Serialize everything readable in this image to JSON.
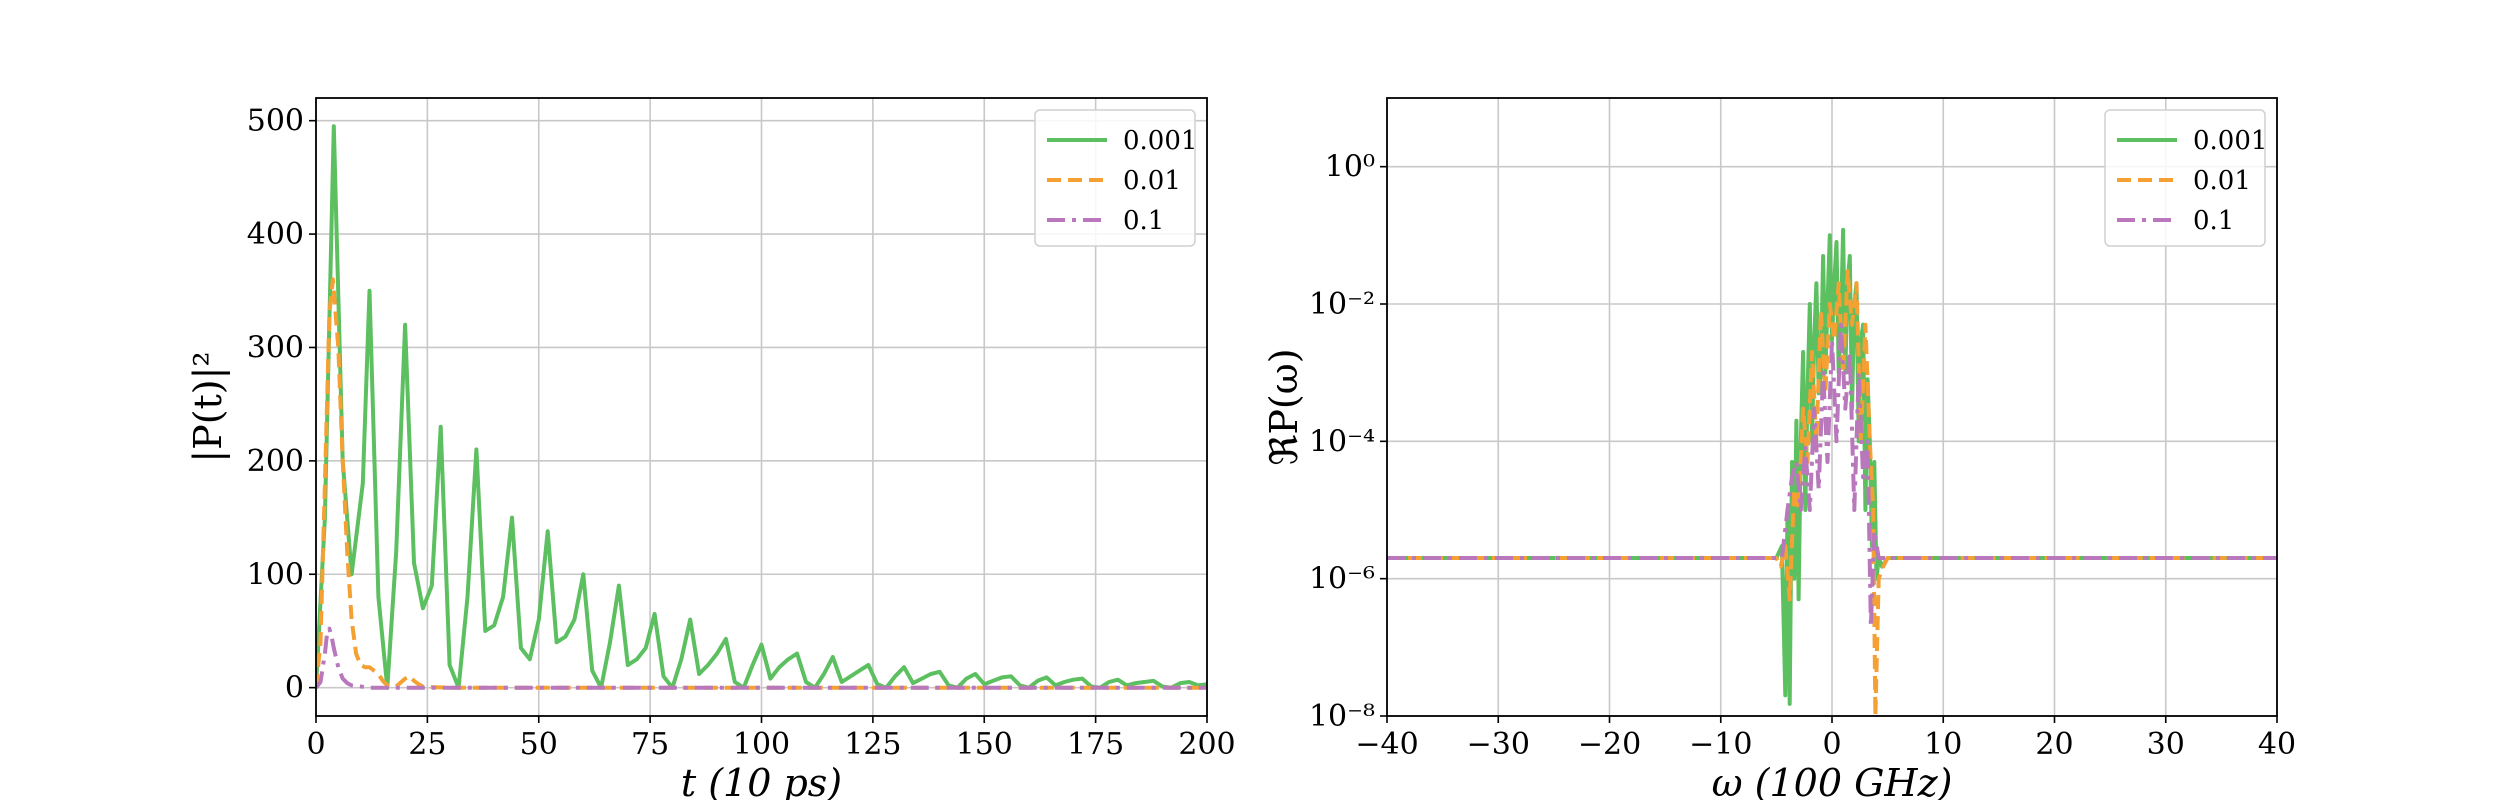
{
  "chart_data": [
    {
      "type": "line",
      "xlabel": "t (10 ps)",
      "ylabel": "|P(t)|²",
      "xlim": [
        0,
        200
      ],
      "ylim": [
        -25,
        520
      ],
      "xticks": [
        "0",
        "25",
        "50",
        "75",
        "100",
        "125",
        "150",
        "175",
        "200"
      ],
      "yticks": [
        "0",
        "100",
        "200",
        "300",
        "400",
        "500"
      ],
      "grid": true,
      "legend_position": "top-right",
      "series": [
        {
          "name": "0.001",
          "color": "#5cbf60",
          "style": "solid",
          "x": [
            0,
            2,
            4,
            6,
            8,
            10.5,
            12,
            14,
            16,
            18,
            20,
            22,
            24,
            26,
            28,
            30,
            32,
            34,
            36,
            38,
            40,
            42,
            44,
            46,
            48,
            50,
            52,
            54,
            56,
            58,
            60,
            62,
            64,
            66,
            68,
            70,
            72,
            74,
            76,
            78,
            80,
            82,
            84,
            86,
            88,
            90,
            92,
            94,
            96,
            98,
            100,
            102,
            104,
            106,
            108,
            110,
            112,
            114,
            116,
            118,
            120,
            122,
            124,
            126,
            128,
            130,
            132,
            134,
            136,
            138,
            140,
            142,
            144,
            146,
            148,
            150,
            152,
            154,
            156,
            158,
            160,
            162,
            164,
            166,
            168,
            170,
            172,
            174,
            176,
            178,
            180,
            182,
            184,
            186,
            188,
            190,
            192,
            194,
            196,
            198,
            200
          ],
          "y": [
            0,
            150,
            495,
            200,
            100,
            180,
            350,
            80,
            0,
            120,
            320,
            110,
            70,
            90,
            230,
            20,
            0,
            80,
            210,
            50,
            55,
            80,
            150,
            35,
            25,
            60,
            138,
            40,
            45,
            60,
            100,
            15,
            0,
            40,
            90,
            20,
            25,
            35,
            65,
            10,
            0,
            25,
            60,
            12,
            20,
            30,
            43,
            5,
            0,
            20,
            38,
            8,
            18,
            25,
            30,
            5,
            0,
            12,
            27,
            5,
            10,
            15,
            20,
            3,
            0,
            10,
            18,
            4,
            8,
            12,
            14,
            2,
            0,
            8,
            12,
            3,
            6,
            9,
            10,
            2,
            0,
            6,
            9,
            2,
            5,
            7,
            8,
            1,
            0,
            5,
            7,
            2,
            4,
            5,
            6,
            1,
            0,
            4,
            5,
            2,
            3
          ]
        },
        {
          "name": "0.01",
          "color": "#f5a033",
          "style": "dashed",
          "x": [
            0,
            1,
            2,
            3,
            3.8,
            5,
            6,
            7,
            8,
            9,
            10,
            11,
            12,
            13,
            14,
            15,
            16,
            18,
            20,
            21,
            22,
            23,
            24,
            26,
            30,
            40,
            60,
            100,
            150,
            200
          ],
          "y": [
            0,
            40,
            180,
            330,
            360,
            300,
            200,
            120,
            60,
            30,
            20,
            18,
            18,
            15,
            12,
            6,
            2,
            1,
            8,
            10,
            6,
            3,
            1,
            0.5,
            0,
            0,
            0,
            0,
            0,
            0
          ]
        },
        {
          "name": "0.1",
          "color": "#b878bb",
          "style": "dashdot",
          "x": [
            0,
            1,
            2,
            2.5,
            3,
            3.5,
            4,
            5,
            6,
            7,
            8,
            10,
            12,
            20,
            50,
            100,
            150,
            200
          ],
          "y": [
            0,
            5,
            30,
            48,
            52,
            45,
            35,
            18,
            8,
            4,
            2,
            1,
            0,
            0,
            0,
            0,
            0,
            0
          ]
        }
      ]
    },
    {
      "type": "line",
      "xlabel": "ω (100 GHz)",
      "ylabel": "ℜP(ω)",
      "xlim": [
        -40,
        40
      ],
      "ylim_log10": [
        -8,
        1
      ],
      "scale_y": "log",
      "xticks": [
        "−40",
        "−30",
        "−20",
        "−10",
        "0",
        "10",
        "20",
        "30",
        "40"
      ],
      "yticks": [
        "10⁰",
        "10⁻²",
        "10⁻⁴",
        "10⁻⁶",
        "10⁻⁸"
      ],
      "grid": true,
      "legend_position": "top-right",
      "baseline": 2e-06,
      "series": [
        {
          "name": "0.001",
          "color": "#5cbf60",
          "style": "solid",
          "x": [
            -40,
            -5,
            -4.5,
            -4.2,
            -4.0,
            -3.8,
            -3.6,
            -3.4,
            -3.2,
            -3.0,
            -2.8,
            -2.6,
            -2.4,
            -2.2,
            -2.0,
            -1.8,
            -1.6,
            -1.4,
            -1.2,
            -1.0,
            -0.8,
            -0.6,
            -0.4,
            -0.2,
            0,
            0.2,
            0.4,
            0.6,
            0.8,
            1.0,
            1.2,
            1.4,
            1.6,
            1.8,
            2.0,
            2.2,
            2.4,
            2.6,
            2.8,
            3.0,
            3.2,
            3.4,
            3.6,
            3.8,
            4.0,
            4.2,
            4.5,
            5,
            40
          ],
          "y": [
            2e-06,
            2e-06,
            3e-06,
            2e-08,
            1e-05,
            1.5e-08,
            5e-05,
            1e-06,
            0.0002,
            5e-07,
            0.0001,
            0.002,
            1e-05,
            0.0005,
            0.01,
            0.0001,
            0.003,
            0.02,
            0.0005,
            0.001,
            0.05,
            0.001,
            0.01,
            0.1,
            0.003,
            0.02,
            0.08,
            0.001,
            0.005,
            0.12,
            0.001,
            0.02,
            0.05,
            0.0003,
            0.01,
            0.02,
            0.0001,
            0.003,
            0.005,
            1e-05,
            0.0008,
            0.0001,
            3e-06,
            5e-05,
            1e-06,
            2e-06,
            1.5e-06,
            2e-06,
            2e-06
          ]
        },
        {
          "name": "0.01",
          "color": "#f5a033",
          "style": "dashed",
          "x": [
            -40,
            -6,
            -5,
            -4.6,
            -4.2,
            -3.8,
            -3.4,
            -3.0,
            -2.6,
            -2.2,
            -1.8,
            -1.4,
            -1.0,
            -0.6,
            -0.2,
            0.2,
            0.6,
            1.0,
            1.4,
            1.8,
            2.2,
            2.6,
            3.0,
            3.4,
            3.7,
            3.9,
            4.2,
            4.6,
            5,
            40
          ],
          "y": [
            2e-06,
            2e-06,
            2e-06,
            1.5e-06,
            3e-06,
            5e-07,
            2e-05,
            1e-05,
            0.0003,
            5e-05,
            0.002,
            0.0001,
            0.008,
            0.0005,
            0.01,
            0.003,
            0.02,
            0.001,
            0.03,
            0.005,
            0.02,
            0.0001,
            0.005,
            0.0001,
            1e-05,
            1e-08,
            1e-06,
            1.5e-06,
            2e-06,
            2e-06
          ]
        },
        {
          "name": "0.1",
          "color": "#b878bb",
          "style": "dashdot",
          "x": [
            -40,
            -6,
            -5,
            -4.5,
            -4.0,
            -3.6,
            -3.2,
            -2.8,
            -2.4,
            -2.0,
            -1.6,
            -1.2,
            -0.8,
            -0.4,
            0,
            0.4,
            0.8,
            1.2,
            1.6,
            2.0,
            2.4,
            2.8,
            3.2,
            3.5,
            3.8,
            4.2,
            5,
            40
          ],
          "y": [
            2e-06,
            2e-06,
            2e-06,
            2e-06,
            1e-05,
            3e-05,
            5e-05,
            1e-05,
            8e-05,
            1e-05,
            0.0003,
            2e-05,
            0.001,
            5e-05,
            0.003,
            0.0001,
            0.005,
            0.0003,
            0.002,
            1e-05,
            0.001,
            3e-05,
            0.0001,
            2e-07,
            5e-06,
            2e-06,
            2e-06,
            2e-06
          ]
        }
      ]
    }
  ]
}
